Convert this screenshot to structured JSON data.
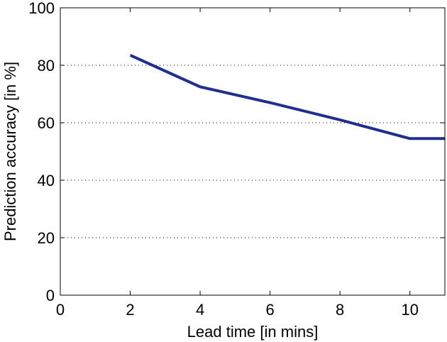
{
  "chart_data": {
    "type": "line",
    "title": "",
    "xlabel": "Lead time [in mins]",
    "ylabel": "Prediction accuracy [in %]",
    "xlim": [
      0,
      11
    ],
    "ylim": [
      0,
      100
    ],
    "xticks": [
      0,
      2,
      4,
      6,
      8,
      10
    ],
    "yticks": [
      0,
      20,
      40,
      60,
      80,
      100
    ],
    "grid": "horizontal dotted",
    "series": [
      {
        "color": "#1f2f8f",
        "x": [
          2,
          4,
          6,
          8,
          10,
          11
        ],
        "y": [
          83.5,
          72.5,
          67,
          61,
          54.5,
          54.5
        ]
      }
    ]
  }
}
